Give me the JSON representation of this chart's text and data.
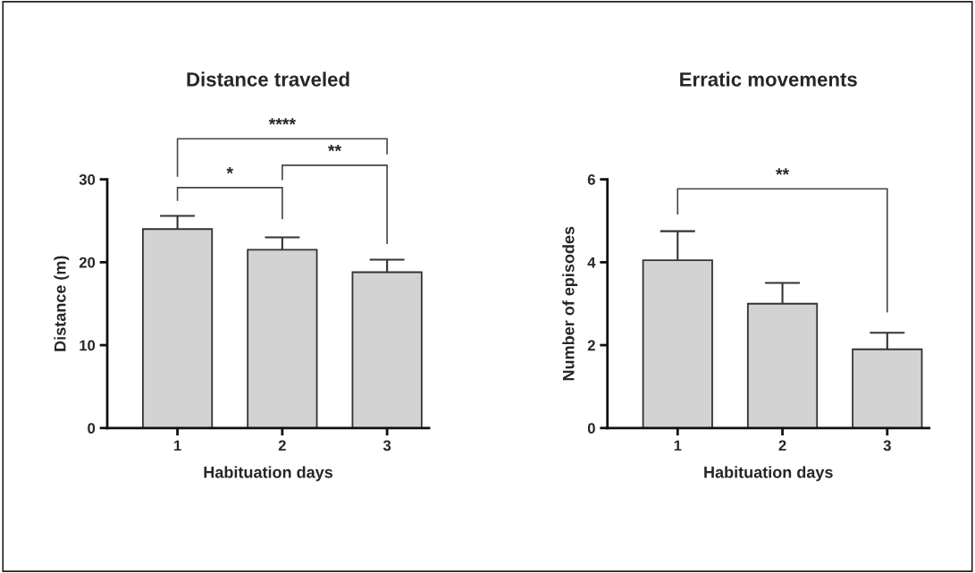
{
  "chart_data": [
    {
      "type": "bar",
      "title": "Distance traveled",
      "xlabel": "Habituation days",
      "ylabel": "Distance (m)",
      "categories": [
        "1",
        "2",
        "3"
      ],
      "values": [
        24.0,
        21.5,
        18.8
      ],
      "color": "#d3d3d3",
      "errors": [
        1.6,
        1.5,
        1.5
      ],
      "ylim": [
        0,
        30
      ],
      "yticks": [
        0,
        10,
        20,
        30
      ],
      "grid": false,
      "annotations": [
        "*",
        "**",
        "****"
      ]
    },
    {
      "type": "bar",
      "title": "Erratic movements",
      "xlabel": "Habituation days",
      "ylabel": "Number of episodes",
      "categories": [
        "1",
        "2",
        "3"
      ],
      "values": [
        4.05,
        3.0,
        1.9
      ],
      "color": "#d3d3d3",
      "errors": [
        0.7,
        0.5,
        0.4
      ],
      "ylim": [
        0,
        6
      ],
      "yticks": [
        0,
        2,
        4,
        6
      ],
      "grid": false,
      "annotations": [
        "**"
      ]
    }
  ]
}
